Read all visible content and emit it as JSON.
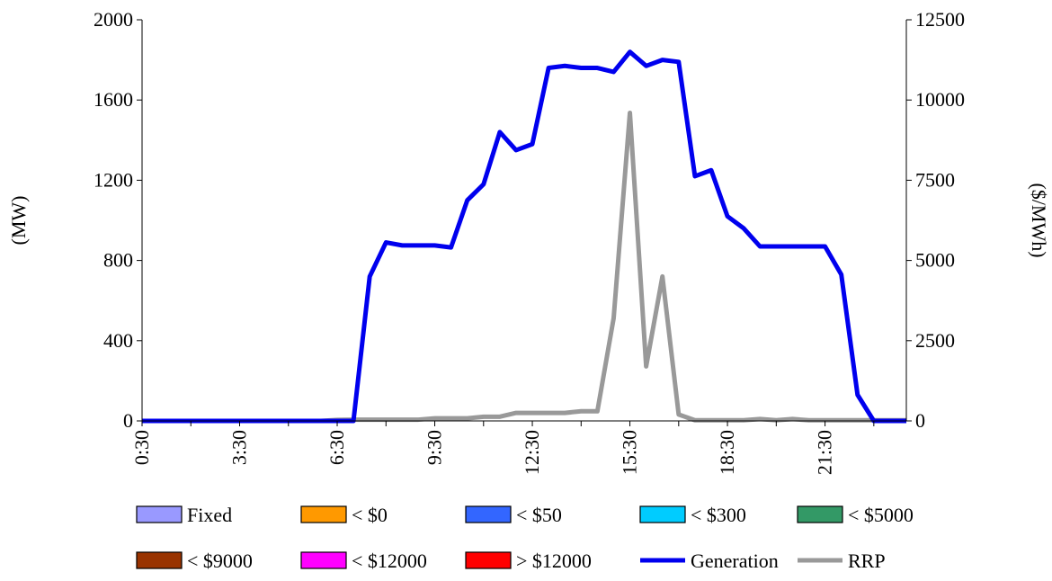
{
  "chart_data": {
    "type": "area",
    "title": "",
    "xlabel": "",
    "ylabel_left": "(MW)",
    "ylabel_right": "($/MWh)",
    "ylim_left": [
      0,
      2000
    ],
    "ylim_right": [
      0,
      12500
    ],
    "yticks_left": [
      "0",
      "400",
      "800",
      "1200",
      "1600",
      "2000"
    ],
    "yticks_right": [
      "0",
      "2500",
      "5000",
      "7500",
      "10000",
      "12500"
    ],
    "xtick_labels": [
      "0:30",
      "3:30",
      "6:30",
      "9:30",
      "12:30",
      "15:30",
      "18:30",
      "21:30"
    ],
    "x": [
      "0:30",
      "1:00",
      "1:30",
      "2:00",
      "2:30",
      "3:00",
      "3:30",
      "4:00",
      "4:30",
      "5:00",
      "5:30",
      "6:00",
      "6:30",
      "7:00",
      "7:30",
      "8:00",
      "8:30",
      "9:00",
      "9:30",
      "10:00",
      "10:30",
      "11:00",
      "11:30",
      "12:00",
      "12:30",
      "13:00",
      "13:30",
      "14:00",
      "14:30",
      "15:00",
      "15:30",
      "16:00",
      "16:30",
      "17:00",
      "17:30",
      "18:00",
      "18:30",
      "19:00",
      "19:30",
      "20:00",
      "20:30",
      "21:00",
      "21:30",
      "22:00",
      "22:30",
      "23:00",
      "23:30",
      "0:00"
    ],
    "legend_position": "bottom",
    "series": [
      {
        "name": "Fixed",
        "kind": "stack",
        "color": "#9999ff",
        "values": [
          0,
          0,
          0,
          0,
          0,
          0,
          0,
          0,
          0,
          0,
          0,
          0,
          0,
          0,
          0,
          0,
          0,
          0,
          0,
          0,
          0,
          0,
          0,
          0,
          0,
          0,
          0,
          0,
          0,
          0,
          0,
          0,
          0,
          0,
          0,
          0,
          0,
          0,
          0,
          0,
          0,
          0,
          0,
          0,
          0,
          0,
          0,
          0
        ]
      },
      {
        "name": "< $0",
        "kind": "stack",
        "color": "#ff9900",
        "values": [
          0,
          0,
          0,
          0,
          0,
          0,
          0,
          0,
          0,
          0,
          0,
          0,
          0,
          0,
          0,
          0,
          0,
          0,
          0,
          0,
          0,
          0,
          0,
          0,
          0,
          0,
          0,
          0,
          0,
          0,
          0,
          0,
          0,
          0,
          0,
          0,
          0,
          0,
          0,
          0,
          0,
          0,
          0,
          0,
          0,
          0,
          0,
          0
        ]
      },
      {
        "name": "< $50",
        "kind": "stack",
        "color": "#3366ff",
        "values": [
          0,
          0,
          0,
          0,
          0,
          0,
          0,
          0,
          0,
          0,
          0,
          0,
          0,
          0,
          0,
          0,
          0,
          0,
          0,
          0,
          0,
          0,
          0,
          0,
          0,
          0,
          0,
          0,
          0,
          0,
          0,
          0,
          0,
          0,
          0,
          0,
          0,
          0,
          0,
          0,
          0,
          0,
          0,
          0,
          0,
          0,
          0,
          0
        ]
      },
      {
        "name": "< $300",
        "kind": "stack",
        "color": "#00ccff",
        "values": [
          0,
          0,
          0,
          0,
          0,
          0,
          0,
          0,
          0,
          0,
          0,
          0,
          0,
          0,
          0,
          0,
          0,
          0,
          0,
          0,
          0,
          0,
          0,
          0,
          0,
          0,
          0,
          0,
          0,
          0,
          0,
          0,
          0,
          0,
          0,
          0,
          0,
          0,
          0,
          0,
          0,
          0,
          0,
          0,
          0,
          0,
          0,
          0
        ]
      },
      {
        "name": "< $5000",
        "kind": "stack",
        "color": "#339966",
        "values": [
          0,
          0,
          0,
          0,
          0,
          0,
          0,
          0,
          0,
          0,
          0,
          0,
          0,
          0,
          0,
          0,
          0,
          0,
          0,
          0,
          0,
          0,
          0,
          0,
          0,
          0,
          0,
          0,
          0,
          0,
          0,
          0,
          0,
          0,
          0,
          0,
          0,
          0,
          0,
          0,
          0,
          0,
          0,
          0,
          0,
          0,
          0,
          0
        ]
      },
      {
        "name": "< $9000",
        "kind": "stack",
        "color": "#993300",
        "values": [
          0,
          0,
          0,
          0,
          0,
          0,
          0,
          0,
          0,
          0,
          0,
          0,
          0,
          0,
          0,
          0,
          0,
          0,
          0,
          0,
          0,
          0,
          0,
          0,
          0,
          0,
          0,
          0,
          0,
          0,
          0,
          0,
          0,
          0,
          0,
          0,
          0,
          0,
          0,
          0,
          0,
          0,
          0,
          0,
          0,
          0,
          0,
          0
        ]
      },
      {
        "name": "< $12000",
        "kind": "stack",
        "color": "#ff00ff",
        "values": [
          0,
          0,
          0,
          0,
          0,
          0,
          0,
          0,
          0,
          0,
          0,
          0,
          0,
          0,
          0,
          0,
          0,
          0,
          0,
          0,
          0,
          0,
          0,
          0,
          0,
          0,
          0,
          0,
          0,
          0,
          0,
          0,
          0,
          0,
          0,
          0,
          0,
          0,
          0,
          0,
          0,
          0,
          0,
          0,
          0,
          0,
          0,
          0
        ]
      },
      {
        "name": "> $12000",
        "kind": "stack",
        "color": "#ff0000",
        "values": [
          0,
          0,
          0,
          0,
          0,
          0,
          0,
          0,
          0,
          0,
          0,
          0,
          0,
          0,
          0,
          0,
          0,
          0,
          0,
          0,
          0,
          0,
          0,
          0,
          0,
          0,
          0,
          0,
          0,
          0,
          0,
          0,
          0,
          0,
          0,
          0,
          0,
          0,
          0,
          0,
          0,
          0,
          0,
          0,
          0,
          0,
          0,
          0
        ]
      },
      {
        "name": "Generation",
        "kind": "line",
        "axis": "left",
        "color": "#0000ee",
        "values": [
          0,
          0,
          0,
          0,
          0,
          0,
          0,
          0,
          0,
          0,
          0,
          0,
          0,
          0,
          720,
          890,
          875,
          875,
          875,
          865,
          1100,
          1180,
          1440,
          1350,
          1380,
          1760,
          1770,
          1760,
          1760,
          1740,
          1840,
          1770,
          1800,
          1790,
          1220,
          1250,
          1020,
          960,
          870,
          870,
          870,
          870,
          870,
          730,
          130,
          0,
          0,
          0
        ]
      },
      {
        "name": "RRP",
        "kind": "line",
        "axis": "right",
        "color": "#999999",
        "values": [
          0,
          0,
          0,
          0,
          0,
          0,
          0,
          0,
          0,
          0,
          0,
          0,
          30,
          40,
          40,
          40,
          40,
          40,
          80,
          80,
          80,
          130,
          130,
          250,
          250,
          250,
          250,
          300,
          300,
          3200,
          9600,
          1700,
          4500,
          200,
          20,
          20,
          20,
          20,
          60,
          20,
          60,
          20,
          20,
          20,
          20,
          20,
          20,
          20
        ]
      }
    ]
  }
}
